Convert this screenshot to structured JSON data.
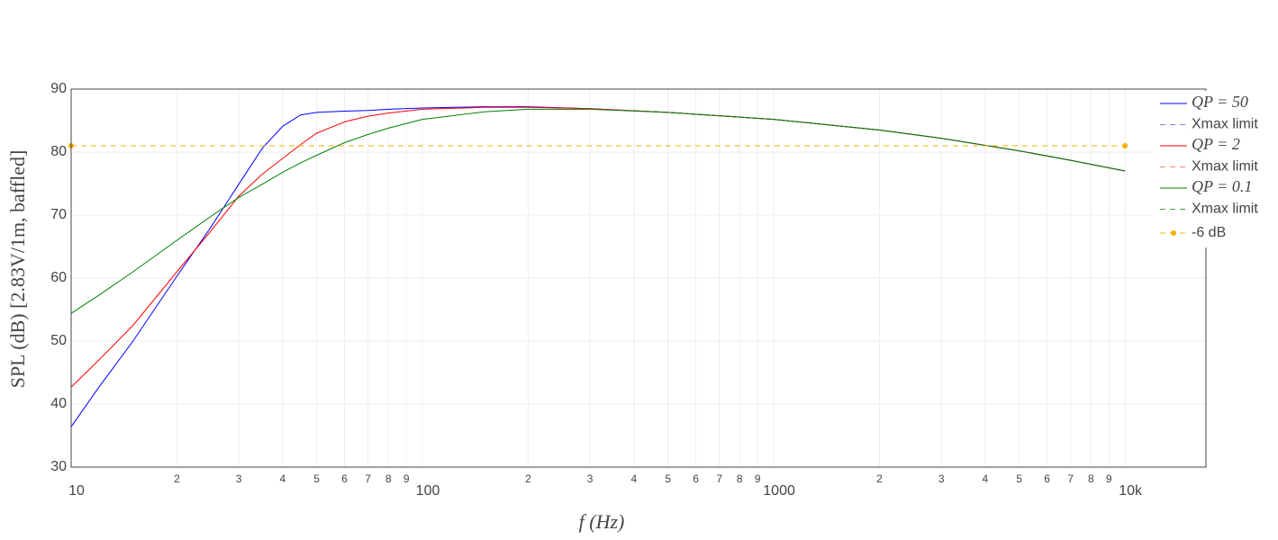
{
  "chart_data": {
    "type": "line",
    "xlabel": "f (Hz)",
    "ylabel": "SPL (dB) [2.83V/1m, baffled]",
    "log_x": true,
    "grid": true,
    "xlim": [
      10,
      17000
    ],
    "ylim": [
      30,
      90
    ],
    "yticks": [
      30,
      40,
      50,
      60,
      70,
      80,
      90
    ],
    "xticks": [
      10,
      {
        "value": 20,
        "label": "2"
      },
      {
        "value": 30,
        "label": "3"
      },
      {
        "value": 40,
        "label": "4"
      },
      {
        "value": 50,
        "label": "5"
      },
      {
        "value": 60,
        "label": "6"
      },
      {
        "value": 70,
        "label": "7"
      },
      {
        "value": 80,
        "label": "8"
      },
      {
        "value": 90,
        "label": "9"
      },
      100,
      {
        "value": 200,
        "label": "2"
      },
      {
        "value": 300,
        "label": "3"
      },
      {
        "value": 400,
        "label": "4"
      },
      {
        "value": 500,
        "label": "5"
      },
      {
        "value": 600,
        "label": "6"
      },
      {
        "value": 700,
        "label": "7"
      },
      {
        "value": 800,
        "label": "8"
      },
      {
        "value": 900,
        "label": "9"
      },
      1000,
      {
        "value": 2000,
        "label": "2"
      },
      {
        "value": 3000,
        "label": "3"
      },
      {
        "value": 4000,
        "label": "4"
      },
      {
        "value": 5000,
        "label": "5"
      },
      {
        "value": 6000,
        "label": "6"
      },
      {
        "value": 7000,
        "label": "7"
      },
      {
        "value": 8000,
        "label": "8"
      },
      {
        "value": 9000,
        "label": "9"
      },
      {
        "value": 10000,
        "label": "10k"
      }
    ],
    "x": [
      10,
      12,
      15,
      20,
      25,
      30,
      35,
      40,
      45,
      50,
      60,
      70,
      80,
      100,
      150,
      200,
      300,
      500,
      1000,
      2000,
      3000,
      5000,
      7000,
      10000
    ],
    "series": [
      {
        "name": "QP = 50",
        "color": "#0000ff",
        "dash": false,
        "values": [
          36.4,
          42.7,
          50.0,
          60.3,
          68.1,
          74.9,
          80.6,
          84.1,
          85.9,
          86.3,
          86.5,
          86.6,
          86.8,
          87.0,
          87.2,
          87.2,
          86.9,
          86.3,
          85.2,
          83.5,
          82.2,
          80.2,
          78.7,
          77.0
        ]
      },
      {
        "name": "Xmax limit",
        "color": "#8080ff",
        "dash": true,
        "values": [
          null,
          null,
          null,
          null,
          null,
          null,
          null,
          null,
          null,
          null,
          null,
          null,
          null,
          null,
          null,
          null,
          null,
          null,
          null,
          null,
          null,
          null,
          null,
          null
        ]
      },
      {
        "name": "QP = 2",
        "color": "#ff0000",
        "dash": false,
        "values": [
          42.7,
          47.0,
          52.5,
          61.0,
          67.5,
          73.0,
          76.5,
          79.0,
          81.2,
          83.0,
          84.8,
          85.7,
          86.2,
          86.8,
          87.1,
          87.1,
          86.9,
          86.3,
          85.2,
          83.5,
          82.2,
          80.2,
          78.7,
          77.0
        ]
      },
      {
        "name": "Xmax limit",
        "color": "#f08080",
        "dash": true,
        "values": [
          null,
          null,
          null,
          null,
          null,
          null,
          null,
          null,
          null,
          null,
          null,
          null,
          null,
          null,
          null,
          null,
          null,
          null,
          null,
          null,
          null,
          null,
          null,
          null
        ]
      },
      {
        "name": "QP = 0.1",
        "color": "#008000",
        "dash": false,
        "values": [
          54.4,
          57.3,
          61.0,
          66.0,
          69.8,
          72.8,
          74.9,
          76.8,
          78.3,
          79.5,
          81.5,
          82.8,
          83.8,
          85.2,
          86.4,
          86.8,
          86.8,
          86.3,
          85.2,
          83.5,
          82.2,
          80.2,
          78.7,
          77.0
        ]
      },
      {
        "name": "Xmax limit",
        "color": "#40a040",
        "dash": true,
        "values": [
          null,
          null,
          null,
          null,
          null,
          null,
          null,
          null,
          null,
          null,
          null,
          null,
          null,
          null,
          null,
          null,
          null,
          null,
          null,
          null,
          null,
          null,
          null,
          null
        ]
      },
      {
        "name": "-6 dB",
        "color": "#f5b000",
        "dash": true,
        "markers": true,
        "x": [
          10,
          10000
        ],
        "values": [
          81,
          81
        ]
      }
    ]
  }
}
